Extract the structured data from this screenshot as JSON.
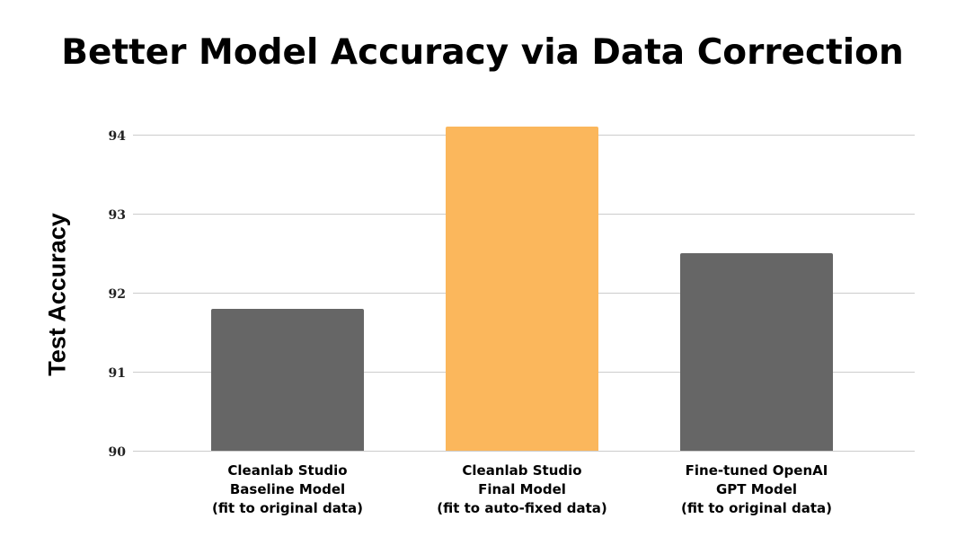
{
  "chart_data": {
    "type": "bar",
    "title": "Better Model Accuracy via Data Correction",
    "xlabel": "",
    "ylabel": "Test Accuracy",
    "ylim": [
      90,
      94
    ],
    "yticks": [
      90,
      91,
      92,
      93,
      94
    ],
    "grid": true,
    "legend": null,
    "categories": [
      "Cleanlab Studio Baseline Model (fit to original data)",
      "Cleanlab Studio Final Model (fit to auto-fixed data)",
      "Fine-tuned OpenAI GPT Model (fit to original data)"
    ],
    "category_lines": [
      [
        "Cleanlab Studio",
        "Baseline Model",
        "(fit to original data)"
      ],
      [
        "Cleanlab Studio",
        "Final Model",
        "(fit to auto-fixed data)"
      ],
      [
        "Fine-tuned OpenAI",
        "GPT Model",
        "(fit to original data)"
      ]
    ],
    "values": [
      91.8,
      94.1,
      92.5
    ],
    "colors": [
      "#666666",
      "#fbb75c",
      "#666666"
    ]
  },
  "ticks": [
    "94",
    "93",
    "92",
    "91",
    "90"
  ]
}
